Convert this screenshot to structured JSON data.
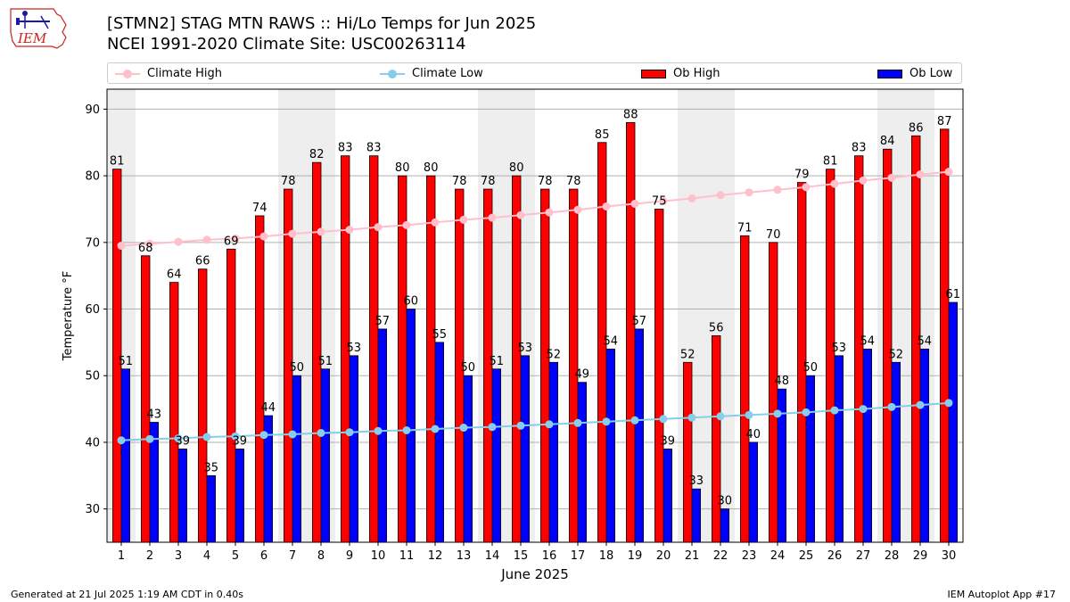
{
  "logo_text": "IEM",
  "title_line1": "[STMN2] STAG MTN RAWS :: Hi/Lo Temps for Jun 2025",
  "title_line2": "NCEI 1991-2020 Climate Site: USC00263114",
  "footer_left": "Generated at 21 Jul 2025 1:19 AM CDT in 0.40s",
  "footer_right": "IEM Autoplot App #17",
  "colors": {
    "ob_high": "#ff0000",
    "ob_low": "#0000ff",
    "climate_high": "#ffc0cb",
    "climate_low": "#87ceeb",
    "weekend_shade": "#eeeeee",
    "grid": "#b0b0b0"
  },
  "chart_data": {
    "type": "bar",
    "xlabel": "June 2025",
    "ylabel": "Temperature °F",
    "ylim": [
      25,
      93
    ],
    "yticks": [
      30,
      40,
      50,
      60,
      70,
      80,
      90
    ],
    "grid": "horizontal",
    "legend_position": "top",
    "categories": [
      "1",
      "2",
      "3",
      "4",
      "5",
      "6",
      "7",
      "8",
      "9",
      "10",
      "11",
      "12",
      "13",
      "14",
      "15",
      "16",
      "17",
      "18",
      "19",
      "20",
      "21",
      "22",
      "23",
      "24",
      "25",
      "26",
      "27",
      "28",
      "29",
      "30"
    ],
    "shaded_days": [
      1,
      7,
      8,
      14,
      15,
      21,
      22,
      28,
      29
    ],
    "series": [
      {
        "name": "Ob High",
        "kind": "bar",
        "values": [
          81,
          68,
          64,
          66,
          69,
          74,
          78,
          82,
          83,
          83,
          80,
          80,
          78,
          78,
          80,
          78,
          78,
          85,
          88,
          75,
          52,
          56,
          71,
          70,
          79,
          81,
          83,
          84,
          86,
          87
        ]
      },
      {
        "name": "Ob Low",
        "kind": "bar",
        "values": [
          51,
          43,
          39,
          35,
          39,
          44,
          50,
          51,
          53,
          57,
          60,
          55,
          50,
          51,
          53,
          52,
          49,
          54,
          57,
          39,
          33,
          30,
          40,
          48,
          50,
          53,
          54,
          52,
          54,
          61
        ]
      },
      {
        "name": "Climate High",
        "kind": "line",
        "values": [
          69.5,
          69.8,
          70.1,
          70.4,
          70.6,
          70.9,
          71.3,
          71.6,
          71.9,
          72.3,
          72.6,
          73.0,
          73.4,
          73.7,
          74.1,
          74.5,
          74.9,
          75.4,
          75.8,
          76.2,
          76.6,
          77.1,
          77.5,
          77.9,
          78.3,
          78.8,
          79.3,
          79.7,
          80.2,
          80.6
        ]
      },
      {
        "name": "Climate Low",
        "kind": "line",
        "values": [
          40.3,
          40.5,
          40.6,
          40.8,
          40.9,
          41.1,
          41.2,
          41.4,
          41.5,
          41.7,
          41.8,
          42.0,
          42.2,
          42.3,
          42.5,
          42.7,
          42.9,
          43.1,
          43.3,
          43.5,
          43.7,
          43.9,
          44.1,
          44.3,
          44.5,
          44.8,
          45.0,
          45.3,
          45.6,
          45.9
        ]
      }
    ]
  }
}
